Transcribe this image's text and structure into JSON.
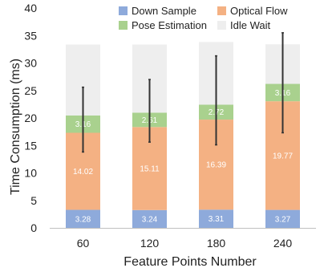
{
  "chart_data": {
    "type": "bar",
    "stacked": true,
    "title": "",
    "xlabel": "Feature Points Number",
    "ylabel": "Time Consumption (ms)",
    "ylim": [
      0,
      40
    ],
    "yticks": [
      0,
      5,
      10,
      15,
      20,
      25,
      30,
      35,
      40
    ],
    "categories": [
      "60",
      "120",
      "180",
      "240"
    ],
    "grid": false,
    "legend_position": "top",
    "series": [
      {
        "name": "Down Sample",
        "color": "#8eaadb",
        "values": [
          3.28,
          3.24,
          3.31,
          3.27
        ],
        "labels": [
          "3.28",
          "3.24",
          "3.31",
          "3.27"
        ]
      },
      {
        "name": "Optical Flow",
        "color": "#f4b183",
        "values": [
          14.02,
          15.11,
          16.39,
          19.77
        ],
        "labels": [
          "14.02",
          "15.11",
          "16.39",
          "19.77"
        ]
      },
      {
        "name": "Pose Estimation",
        "color": "#a9d18e",
        "values": [
          3.16,
          2.61,
          2.72,
          3.16
        ],
        "labels": [
          "3.16",
          "2.61",
          "2.72",
          "3.16"
        ]
      },
      {
        "name": "Idle Wait",
        "color": "#eeeeee",
        "values": [
          12.9,
          12.4,
          11.4,
          7.2
        ],
        "labels": [
          "",
          "",
          "",
          ""
        ]
      }
    ],
    "error_bars": [
      {
        "category": "60",
        "low": 13.8,
        "high": 25.6
      },
      {
        "category": "120",
        "low": 15.6,
        "high": 27.0
      },
      {
        "category": "180",
        "low": 15.1,
        "high": 31.3
      },
      {
        "category": "240",
        "low": 17.3,
        "high": 35.5
      }
    ]
  }
}
